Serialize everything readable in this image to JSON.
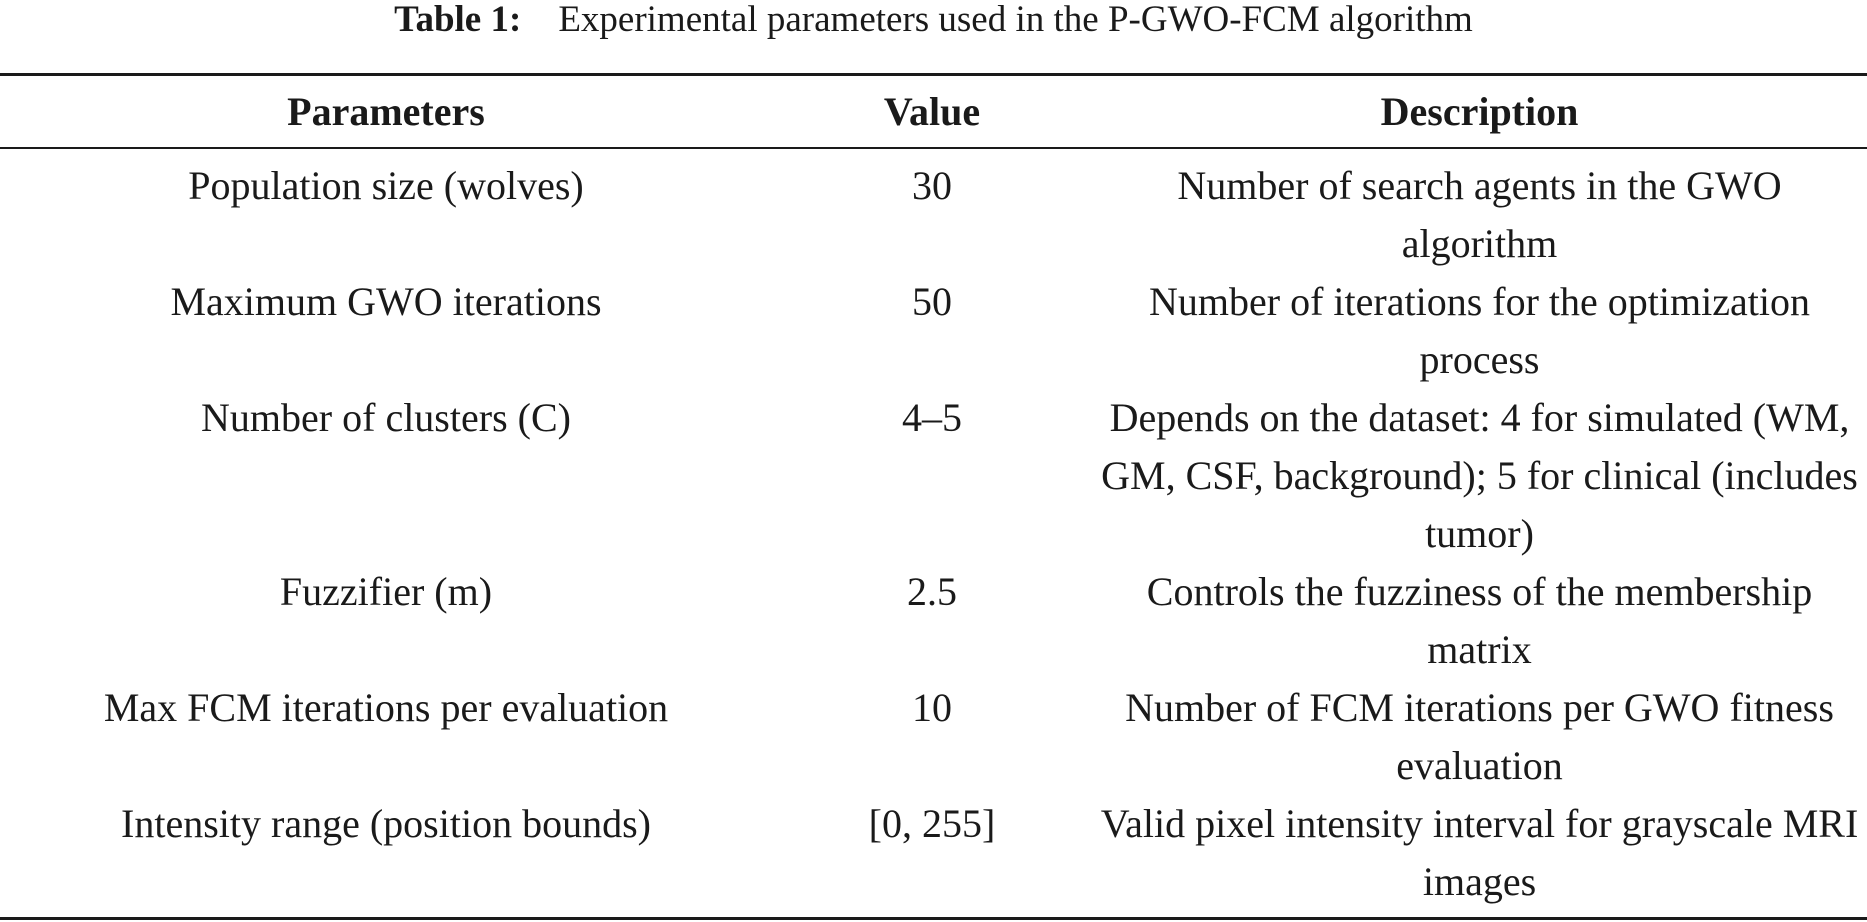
{
  "caption": {
    "label": "Table 1:",
    "text": "Experimental parameters used in the P-GWO-FCM algorithm"
  },
  "table": {
    "headers": [
      "Parameters",
      "Value",
      "Description"
    ],
    "rows": [
      [
        "Population size (wolves)",
        "30",
        "Number of search agents in the GWO algorithm"
      ],
      [
        "Maximum GWO iterations",
        "50",
        "Number of iterations for the optimization process"
      ],
      [
        "Number of clusters (C)",
        "4–5",
        "Depends on the dataset: 4 for simulated (WM, GM, CSF, background); 5 for clinical (includes tumor)"
      ],
      [
        "Fuzzifier (m)",
        "2.5",
        "Controls the fuzziness of the membership matrix"
      ],
      [
        "Max FCM iterations per evaluation",
        "10",
        "Number of FCM iterations per GWO fitness evaluation"
      ],
      [
        "Intensity range (position bounds)",
        "[0, 255]",
        "Valid pixel intensity interval for grayscale MRI images"
      ]
    ]
  }
}
